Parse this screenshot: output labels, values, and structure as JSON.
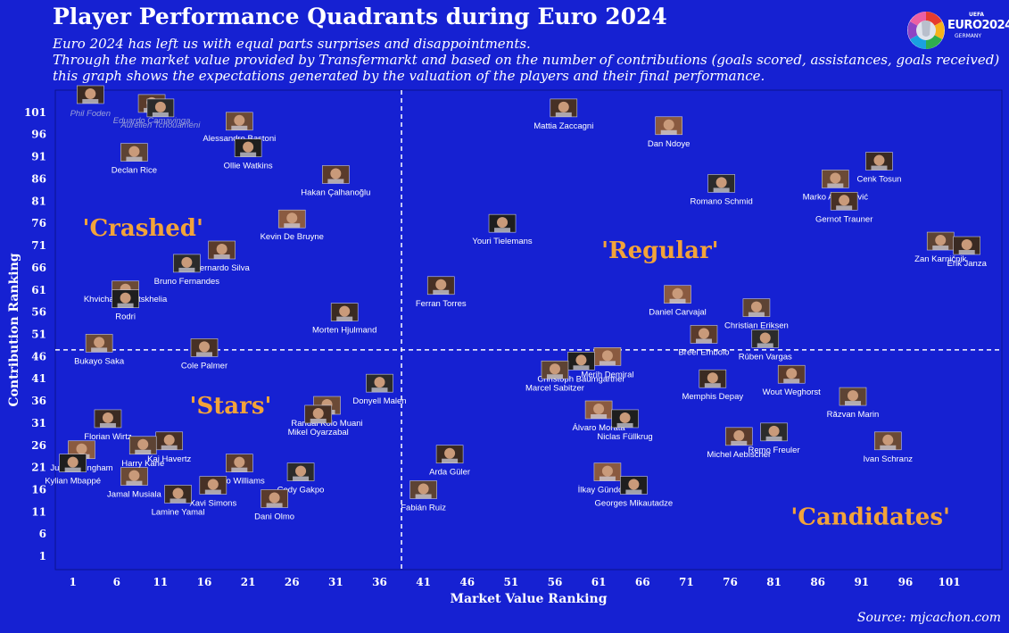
{
  "header": {
    "title": "Player Performance Quadrants during Euro 2024",
    "subtitle_lines": [
      "Euro 2024 has left us with equal parts surprises and disappointments.",
      "Through the market value provided by Transfermarkt and based on the number of contributions (goals scored, assistances, goals received)",
      "this graph shows the expectations generated by the valuation of the players and their final performance."
    ],
    "source": "Source: mjcachon.com"
  },
  "logo": {
    "text": "EURO2024",
    "sub": "GERMANY",
    "uefa": "UEFA"
  },
  "colors": {
    "background": "#1621d2",
    "quadrant_label": "#f2a33a",
    "plot_border": "#0c148f",
    "text": "#ffffff"
  },
  "chart_data": {
    "type": "scatter",
    "xlabel": "Market Value Ranking",
    "ylabel": "Contribution Ranking",
    "xlim": [
      -1,
      107
    ],
    "ylim": [
      -2,
      106
    ],
    "xticks": [
      1,
      6,
      11,
      16,
      21,
      26,
      31,
      36,
      41,
      46,
      51,
      56,
      61,
      66,
      71,
      76,
      81,
      86,
      91,
      96,
      101
    ],
    "yticks": [
      1,
      6,
      11,
      16,
      21,
      26,
      31,
      36,
      41,
      46,
      51,
      56,
      61,
      66,
      71,
      76,
      81,
      86,
      91,
      96,
      101
    ],
    "divider_x": 38.5,
    "divider_y": 47.5,
    "quadrant_labels": [
      {
        "text": "'Crashed'",
        "x": 9,
        "y": 75
      },
      {
        "text": "'Regular'",
        "x": 68,
        "y": 70
      },
      {
        "text": "'Stars'",
        "x": 19,
        "y": 35
      },
      {
        "text": "'Candidates'",
        "x": 92,
        "y": 10
      }
    ],
    "points": [
      {
        "name": "Phil Foden",
        "x": 3,
        "y": 105,
        "label_dy": 8,
        "dim": true
      },
      {
        "name": "Eduardo Camavinga",
        "x": 10,
        "y": 103,
        "label_dy": 6,
        "dim": true
      },
      {
        "name": "Aurélien Tchouaméni",
        "x": 11,
        "y": 102,
        "label_dy": 6,
        "dim": true
      },
      {
        "name": "Alessandro Bastoni",
        "x": 20,
        "y": 99,
        "label_dy": 6
      },
      {
        "name": "Mattia Zaccagni",
        "x": 57,
        "y": 102,
        "label_dy": 7
      },
      {
        "name": "Dan Ndoye",
        "x": 69,
        "y": 98,
        "label_dy": 7
      },
      {
        "name": "Ollie Watkins",
        "x": 21,
        "y": 93,
        "label_dy": 7
      },
      {
        "name": "Declan Rice",
        "x": 8,
        "y": 92,
        "label_dy": 7
      },
      {
        "name": "Cenk Tosun",
        "x": 93,
        "y": 90,
        "label_dy": 7
      },
      {
        "name": "Hakan Çalhanoğlu",
        "x": 31,
        "y": 87,
        "label_dy": 7
      },
      {
        "name": "Romano Schmid",
        "x": 75,
        "y": 85,
        "label_dy": 7
      },
      {
        "name": "Marko Arnautović",
        "x": 88,
        "y": 86,
        "label_dy": 7
      },
      {
        "name": "Gernot Trauner",
        "x": 89,
        "y": 81,
        "label_dy": 7
      },
      {
        "name": "Kevin De Bruyne",
        "x": 26,
        "y": 77,
        "label_dy": 7
      },
      {
        "name": "Youri Tielemans",
        "x": 50,
        "y": 76,
        "label_dy": 7
      },
      {
        "name": "Zan Karničnik",
        "x": 100,
        "y": 72,
        "label_dy": 7
      },
      {
        "name": "Erik Janza",
        "x": 103,
        "y": 71,
        "label_dy": 7
      },
      {
        "name": "Bernardo Silva",
        "x": 18,
        "y": 70,
        "label_dy": 7
      },
      {
        "name": "Bruno Fernandes",
        "x": 14,
        "y": 67,
        "label_dy": 7
      },
      {
        "name": "Khvicha Kvaratskhelia",
        "x": 7,
        "y": 61,
        "label_dy": -3
      },
      {
        "name": "Ferran Torres",
        "x": 43,
        "y": 62,
        "label_dy": 7
      },
      {
        "name": "Daniel Carvajal",
        "x": 70,
        "y": 60,
        "label_dy": 7
      },
      {
        "name": "Rodri",
        "x": 7,
        "y": 59,
        "label_dy": 7
      },
      {
        "name": "Christian Eriksen",
        "x": 79,
        "y": 57,
        "label_dy": 7
      },
      {
        "name": "Morten Hjulmand",
        "x": 32,
        "y": 56,
        "label_dy": 7
      },
      {
        "name": "Breel Embolo",
        "x": 73,
        "y": 51,
        "label_dy": 7
      },
      {
        "name": "Rúben Vargas",
        "x": 80,
        "y": 50,
        "label_dy": 7
      },
      {
        "name": "Bukayo Saka",
        "x": 4,
        "y": 49,
        "label_dy": 7
      },
      {
        "name": "Cole Palmer",
        "x": 16,
        "y": 48,
        "label_dy": 7
      },
      {
        "name": "Merih Demiral",
        "x": 62,
        "y": 46,
        "label_dy": 7
      },
      {
        "name": "Christoph Baumgartner",
        "x": 59,
        "y": 45,
        "label_dy": 7
      },
      {
        "name": "Marcel Sabitzer",
        "x": 56,
        "y": 43,
        "label_dy": 7
      },
      {
        "name": "Memphis Depay",
        "x": 74,
        "y": 41,
        "label_dy": 7
      },
      {
        "name": "Wout Weghorst",
        "x": 83,
        "y": 42,
        "label_dy": 7
      },
      {
        "name": "Donyell Malen",
        "x": 36,
        "y": 40,
        "label_dy": 7
      },
      {
        "name": "Randal Kolo Muani",
        "x": 30,
        "y": 35,
        "label_dy": 7
      },
      {
        "name": "Mikel Oyarzabal",
        "x": 29,
        "y": 33,
        "label_dy": 7
      },
      {
        "name": "Álvaro Morata",
        "x": 61,
        "y": 34,
        "label_dy": 7
      },
      {
        "name": "Niclas Füllkrug",
        "x": 64,
        "y": 32,
        "label_dy": 7
      },
      {
        "name": "Răzvan Marin",
        "x": 90,
        "y": 37,
        "label_dy": 7
      },
      {
        "name": "Florian Wirtz",
        "x": 5,
        "y": 32,
        "label_dy": 7
      },
      {
        "name": "Michel Aebischer",
        "x": 77,
        "y": 28,
        "label_dy": 7
      },
      {
        "name": "Remo Freuler",
        "x": 81,
        "y": 29,
        "label_dy": 7
      },
      {
        "name": "Ivan Schranz",
        "x": 94,
        "y": 27,
        "label_dy": 7
      },
      {
        "name": "Kai Havertz",
        "x": 12,
        "y": 27,
        "label_dy": 7
      },
      {
        "name": "Jude Bellingham",
        "x": 2,
        "y": 25,
        "label_dy": 7
      },
      {
        "name": "Kylian Mbappé",
        "x": 1,
        "y": 22,
        "label_dy": 7
      },
      {
        "name": "Harry Kane",
        "x": 9,
        "y": 26,
        "label_dy": 7
      },
      {
        "name": "Arda Güler",
        "x": 44,
        "y": 24,
        "label_dy": 7
      },
      {
        "name": "Nico Williams",
        "x": 20,
        "y": 22,
        "label_dy": 7
      },
      {
        "name": "Cody Gakpo",
        "x": 27,
        "y": 20,
        "label_dy": 7
      },
      {
        "name": "Jamal Musiala",
        "x": 8,
        "y": 19,
        "label_dy": 7
      },
      {
        "name": "Xavi Simons",
        "x": 17,
        "y": 17,
        "label_dy": 7
      },
      {
        "name": "İlkay Gündoğan",
        "x": 62,
        "y": 20,
        "label_dy": 7
      },
      {
        "name": "Georges Mikautadze",
        "x": 65,
        "y": 17,
        "label_dy": 7
      },
      {
        "name": "Fabián Ruiz",
        "x": 41,
        "y": 16,
        "label_dy": 7
      },
      {
        "name": "Lamine Yamal",
        "x": 13,
        "y": 15,
        "label_dy": 7
      },
      {
        "name": "Dani Olmo",
        "x": 24,
        "y": 14,
        "label_dy": 7
      }
    ]
  }
}
